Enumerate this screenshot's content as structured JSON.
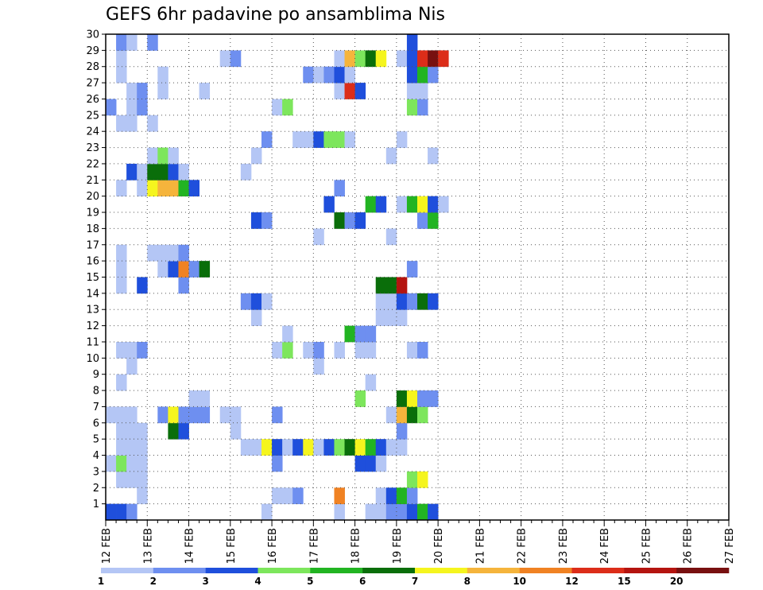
{
  "chart_data": {
    "type": "heatmap",
    "title": "GEFS 6hr padavine po ansamblima Nis",
    "xlabel": "",
    "ylabel": "",
    "x_ticks": [
      "12 FEB",
      "13 FEB",
      "14 FEB",
      "15 FEB",
      "16 FEB",
      "17 FEB",
      "18 FEB",
      "19 FEB",
      "20 FEB",
      "21 FEB",
      "22 FEB",
      "23 FEB",
      "24 FEB",
      "25 FEB",
      "26 FEB",
      "27 FEB"
    ],
    "xlim": [
      "12 FEB 00Z",
      "27 FEB 00Z"
    ],
    "time_step_hours": 6,
    "y_ticks": [
      1,
      2,
      3,
      4,
      5,
      6,
      7,
      8,
      9,
      10,
      11,
      12,
      13,
      14,
      15,
      16,
      17,
      18,
      19,
      20,
      21,
      22,
      23,
      24,
      25,
      26,
      27,
      28,
      29,
      30
    ],
    "ylim": [
      0,
      30
    ],
    "grid": true,
    "colorbar": {
      "levels": [
        1,
        2,
        3,
        4,
        5,
        6,
        7,
        8,
        10,
        12,
        15,
        20
      ],
      "level_labels": [
        "1",
        "2",
        "3",
        "4",
        "5",
        "6",
        "7",
        "8",
        "10",
        "12",
        "15",
        "20"
      ],
      "colors": [
        "#b4c6f5",
        "#6e8ff0",
        "#1f4fdc",
        "#7de65c",
        "#22b422",
        "#0a6e0a",
        "#f5f51e",
        "#f5b43c",
        "#f08223",
        "#dc2d19",
        "#b4140f",
        "#781010"
      ]
    },
    "cells_format": "[member, step_index_from_12FEB00Z, color_class]",
    "cells": [
      [
        1,
        0,
        3
      ],
      [
        1,
        1,
        3
      ],
      [
        1,
        2,
        2
      ],
      [
        1,
        15,
        1
      ],
      [
        1,
        22,
        1
      ],
      [
        1,
        25,
        1
      ],
      [
        1,
        26,
        1
      ],
      [
        1,
        27,
        2
      ],
      [
        1,
        28,
        2
      ],
      [
        1,
        29,
        3
      ],
      [
        1,
        30,
        5
      ],
      [
        1,
        31,
        3
      ],
      [
        2,
        3,
        1
      ],
      [
        2,
        16,
        1
      ],
      [
        2,
        17,
        1
      ],
      [
        2,
        18,
        2
      ],
      [
        2,
        22,
        9
      ],
      [
        2,
        26,
        1
      ],
      [
        2,
        27,
        3
      ],
      [
        2,
        28,
        5
      ],
      [
        2,
        29,
        2
      ],
      [
        3,
        1,
        1
      ],
      [
        3,
        2,
        1
      ],
      [
        3,
        3,
        1
      ],
      [
        3,
        29,
        4
      ],
      [
        3,
        30,
        7
      ],
      [
        4,
        0,
        1
      ],
      [
        4,
        1,
        4
      ],
      [
        4,
        2,
        1
      ],
      [
        4,
        3,
        1
      ],
      [
        4,
        16,
        2
      ],
      [
        4,
        24,
        3
      ],
      [
        4,
        25,
        3
      ],
      [
        4,
        26,
        1
      ],
      [
        5,
        1,
        1
      ],
      [
        5,
        2,
        1
      ],
      [
        5,
        3,
        1
      ],
      [
        5,
        13,
        1
      ],
      [
        5,
        14,
        1
      ],
      [
        5,
        15,
        7
      ],
      [
        5,
        16,
        3
      ],
      [
        5,
        17,
        1
      ],
      [
        5,
        18,
        3
      ],
      [
        5,
        19,
        7
      ],
      [
        5,
        20,
        1
      ],
      [
        5,
        21,
        3
      ],
      [
        5,
        22,
        4
      ],
      [
        5,
        23,
        6
      ],
      [
        5,
        24,
        7
      ],
      [
        5,
        25,
        5
      ],
      [
        5,
        26,
        3
      ],
      [
        5,
        27,
        1
      ],
      [
        5,
        28,
        1
      ],
      [
        6,
        1,
        1
      ],
      [
        6,
        2,
        1
      ],
      [
        6,
        3,
        1
      ],
      [
        6,
        6,
        6
      ],
      [
        6,
        7,
        3
      ],
      [
        6,
        12,
        1
      ],
      [
        6,
        28,
        2
      ],
      [
        7,
        0,
        1
      ],
      [
        7,
        1,
        1
      ],
      [
        7,
        2,
        1
      ],
      [
        7,
        5,
        2
      ],
      [
        7,
        6,
        7
      ],
      [
        7,
        7,
        2
      ],
      [
        7,
        8,
        2
      ],
      [
        7,
        9,
        2
      ],
      [
        7,
        11,
        1
      ],
      [
        7,
        12,
        1
      ],
      [
        7,
        16,
        2
      ],
      [
        7,
        27,
        1
      ],
      [
        7,
        28,
        8
      ],
      [
        7,
        29,
        6
      ],
      [
        7,
        30,
        4
      ],
      [
        8,
        8,
        1
      ],
      [
        8,
        9,
        1
      ],
      [
        8,
        24,
        4
      ],
      [
        8,
        28,
        6
      ],
      [
        8,
        29,
        7
      ],
      [
        8,
        30,
        2
      ],
      [
        8,
        31,
        2
      ],
      [
        9,
        1,
        1
      ],
      [
        9,
        25,
        1
      ],
      [
        10,
        2,
        1
      ],
      [
        10,
        20,
        1
      ],
      [
        11,
        1,
        1
      ],
      [
        11,
        2,
        1
      ],
      [
        11,
        3,
        2
      ],
      [
        11,
        16,
        1
      ],
      [
        11,
        17,
        4
      ],
      [
        11,
        19,
        1
      ],
      [
        11,
        20,
        2
      ],
      [
        11,
        22,
        1
      ],
      [
        11,
        24,
        1
      ],
      [
        11,
        25,
        1
      ],
      [
        11,
        29,
        1
      ],
      [
        11,
        30,
        2
      ],
      [
        12,
        17,
        1
      ],
      [
        12,
        23,
        5
      ],
      [
        12,
        24,
        2
      ],
      [
        12,
        25,
        2
      ],
      [
        13,
        14,
        1
      ],
      [
        13,
        26,
        1
      ],
      [
        13,
        27,
        1
      ],
      [
        13,
        28,
        1
      ],
      [
        14,
        13,
        2
      ],
      [
        14,
        14,
        3
      ],
      [
        14,
        15,
        1
      ],
      [
        14,
        26,
        1
      ],
      [
        14,
        27,
        1
      ],
      [
        14,
        28,
        3
      ],
      [
        14,
        29,
        2
      ],
      [
        14,
        30,
        6
      ],
      [
        14,
        31,
        3
      ],
      [
        15,
        1,
        1
      ],
      [
        15,
        3,
        3
      ],
      [
        15,
        7,
        2
      ],
      [
        15,
        26,
        6
      ],
      [
        15,
        27,
        6
      ],
      [
        15,
        28,
        11
      ],
      [
        16,
        1,
        1
      ],
      [
        16,
        5,
        1
      ],
      [
        16,
        6,
        3
      ],
      [
        16,
        7,
        9
      ],
      [
        16,
        8,
        2
      ],
      [
        16,
        9,
        6
      ],
      [
        16,
        29,
        2
      ],
      [
        17,
        1,
        1
      ],
      [
        17,
        4,
        1
      ],
      [
        17,
        5,
        1
      ],
      [
        17,
        6,
        1
      ],
      [
        17,
        7,
        2
      ],
      [
        18,
        20,
        1
      ],
      [
        18,
        27,
        1
      ],
      [
        19,
        14,
        3
      ],
      [
        19,
        15,
        2
      ],
      [
        19,
        22,
        6
      ],
      [
        19,
        23,
        2
      ],
      [
        19,
        24,
        3
      ],
      [
        19,
        30,
        2
      ],
      [
        19,
        31,
        5
      ],
      [
        20,
        21,
        3
      ],
      [
        20,
        25,
        5
      ],
      [
        20,
        26,
        3
      ],
      [
        20,
        28,
        1
      ],
      [
        20,
        29,
        5
      ],
      [
        20,
        30,
        7
      ],
      [
        20,
        31,
        3
      ],
      [
        20,
        32,
        1
      ],
      [
        21,
        1,
        1
      ],
      [
        21,
        3,
        1
      ],
      [
        21,
        4,
        7
      ],
      [
        21,
        5,
        8
      ],
      [
        21,
        6,
        8
      ],
      [
        21,
        7,
        5
      ],
      [
        21,
        8,
        3
      ],
      [
        21,
        22,
        2
      ],
      [
        22,
        2,
        3
      ],
      [
        22,
        3,
        1
      ],
      [
        22,
        4,
        6
      ],
      [
        22,
        5,
        6
      ],
      [
        22,
        6,
        3
      ],
      [
        22,
        7,
        1
      ],
      [
        22,
        13,
        1
      ],
      [
        23,
        4,
        1
      ],
      [
        23,
        5,
        4
      ],
      [
        23,
        6,
        1
      ],
      [
        23,
        14,
        1
      ],
      [
        23,
        27,
        1
      ],
      [
        23,
        31,
        1
      ],
      [
        24,
        15,
        2
      ],
      [
        24,
        18,
        1
      ],
      [
        24,
        19,
        1
      ],
      [
        24,
        20,
        3
      ],
      [
        24,
        21,
        4
      ],
      [
        24,
        22,
        4
      ],
      [
        24,
        23,
        1
      ],
      [
        24,
        28,
        1
      ],
      [
        25,
        1,
        1
      ],
      [
        25,
        2,
        1
      ],
      [
        25,
        4,
        1
      ],
      [
        26,
        0,
        2
      ],
      [
        26,
        2,
        1
      ],
      [
        26,
        3,
        2
      ],
      [
        26,
        16,
        1
      ],
      [
        26,
        17,
        4
      ],
      [
        26,
        29,
        4
      ],
      [
        26,
        30,
        2
      ],
      [
        27,
        2,
        1
      ],
      [
        27,
        3,
        2
      ],
      [
        27,
        5,
        1
      ],
      [
        27,
        9,
        1
      ],
      [
        27,
        22,
        1
      ],
      [
        27,
        23,
        10
      ],
      [
        27,
        24,
        3
      ],
      [
        27,
        29,
        1
      ],
      [
        27,
        30,
        1
      ],
      [
        28,
        1,
        1
      ],
      [
        28,
        5,
        1
      ],
      [
        28,
        19,
        2
      ],
      [
        28,
        20,
        1
      ],
      [
        28,
        21,
        2
      ],
      [
        28,
        22,
        3
      ],
      [
        28,
        23,
        1
      ],
      [
        28,
        29,
        3
      ],
      [
        28,
        30,
        5
      ],
      [
        28,
        31,
        2
      ],
      [
        29,
        1,
        1
      ],
      [
        29,
        11,
        1
      ],
      [
        29,
        12,
        2
      ],
      [
        29,
        22,
        1
      ],
      [
        29,
        23,
        8
      ],
      [
        29,
        24,
        4
      ],
      [
        29,
        25,
        6
      ],
      [
        29,
        26,
        7
      ],
      [
        29,
        28,
        1
      ],
      [
        29,
        29,
        3
      ],
      [
        29,
        30,
        10
      ],
      [
        29,
        31,
        12
      ],
      [
        29,
        32,
        10
      ],
      [
        30,
        1,
        2
      ],
      [
        30,
        2,
        1
      ],
      [
        30,
        4,
        2
      ],
      [
        30,
        29,
        3
      ]
    ]
  }
}
